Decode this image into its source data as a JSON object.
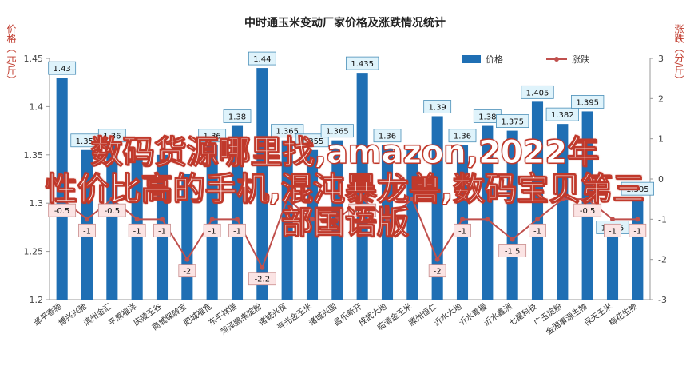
{
  "title": "中时通玉米变动厂家价格及涨跌情况统计",
  "ylabel_left": "价格（元/斤）",
  "ylabel_right": "涨跌（分/斤）",
  "overlay": {
    "line1": "数码货源哪里找,amazon,2022年",
    "line2": "性价比高的手机,混沌暴龙兽,数码宝贝第三",
    "line3": "部国语版"
  },
  "colors": {
    "bar": "#1f6fb4",
    "line": "#c0504d",
    "bar_label_bg": "#dff3fb",
    "line_label_bg": "#fbe4e4"
  },
  "chart_data": {
    "type": "bar",
    "title": "中时通玉米变动厂家价格及涨跌情况统计",
    "categories": [
      "邹平香驰",
      "博兴兴驰",
      "滨州金汇",
      "平原福洋",
      "庆陵玉谷",
      "商城保龄宝",
      "肥城福宽",
      "东平祥瑞",
      "菏泽鹏来淀粉",
      "诸城兴贸",
      "寿光金玉米",
      "诸城兴国",
      "昌乐新开",
      "成武大地",
      "临清金玉米",
      "滕州恒仁",
      "沂水大地",
      "沂水青援",
      "沂水鑫洲",
      "七星科技",
      "广玉淀粉",
      "金湘事源生物",
      "保天玉米",
      "梅花生物"
    ],
    "series": [
      {
        "name": "价格",
        "type": "bar",
        "axis": "left",
        "values": [
          1.43,
          1.355,
          1.36,
          1.345,
          1.35,
          1.33,
          1.36,
          1.38,
          1.44,
          1.365,
          1.355,
          1.365,
          1.435,
          1.36,
          1.355,
          1.39,
          1.36,
          1.38,
          1.375,
          1.405,
          1.382,
          1.395,
          1.265,
          1.305
        ],
        "labels": [
          "1.43",
          "1.355",
          "1.36",
          "",
          "",
          "",
          "1.36",
          "1.38",
          "1.44",
          "1.365",
          "1.355",
          "1.365",
          "1.435",
          "1.36",
          "",
          "1.39",
          "1.36",
          "1.38",
          "1.375",
          "1.405",
          "1.382",
          "1.395",
          "1.265",
          "1.305"
        ]
      },
      {
        "name": "涨跌",
        "type": "line",
        "axis": "right",
        "values": [
          -0.5,
          -1,
          -0.5,
          -1,
          -1,
          -2,
          -1,
          -1,
          -2.2,
          -0.5,
          -1,
          -1,
          -0.5,
          -1,
          -0.5,
          -2,
          -1,
          -1,
          -1.5,
          -1,
          -0.5,
          -0.5,
          -1,
          -1
        ],
        "labels": [
          "-0.5",
          "-1",
          "-0.5",
          "-1",
          "-1",
          "-2",
          "-1",
          "-1",
          "-2.2",
          "",
          "",
          "",
          "-0.5",
          "",
          "",
          "-2",
          "-1",
          "",
          "-1.5",
          "-1",
          "",
          "-0.5",
          "-1",
          "-1"
        ]
      }
    ],
    "ylim": [
      1.2,
      1.45
    ],
    "yticks": [
      "1.2",
      "1.25",
      "1.3",
      "1.35",
      "1.4",
      "1.45"
    ],
    "y2lim": [
      -3,
      3
    ],
    "y2ticks": [
      "-3",
      "-2",
      "-1",
      "0",
      "1",
      "2",
      "3"
    ],
    "legend": {
      "position": "top-right",
      "items": [
        "价格",
        "涨跌"
      ]
    },
    "grid": false
  }
}
